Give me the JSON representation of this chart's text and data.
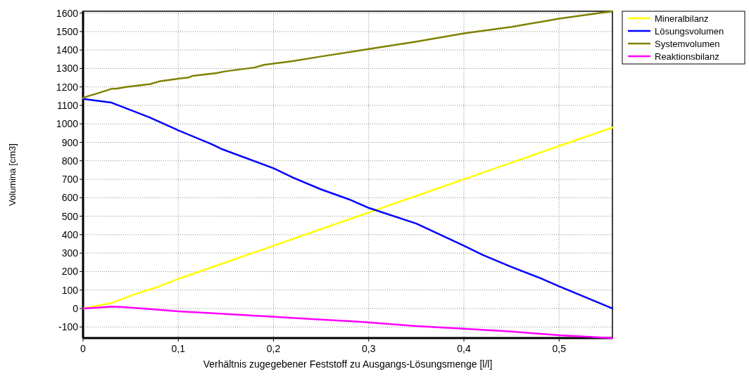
{
  "chart_data": {
    "type": "line",
    "xlabel": "Verhältnis zugegebener Feststoff zu Ausgangs-Lösungsmenge [l/l]",
    "ylabel": "Volumina [cm3]",
    "xlim": [
      0,
      0.556
    ],
    "xticks": [
      {
        "value": 0,
        "label": "0"
      },
      {
        "value": 0.1,
        "label": "0,1"
      },
      {
        "value": 0.2,
        "label": "0,2"
      },
      {
        "value": 0.3,
        "label": "0,3"
      },
      {
        "value": 0.4,
        "label": "0,4"
      },
      {
        "value": 0.5,
        "label": "0,5"
      }
    ],
    "ylim": [
      -160,
      1610
    ],
    "yticks": [
      -100,
      0,
      100,
      200,
      300,
      400,
      500,
      600,
      700,
      800,
      900,
      1000,
      1100,
      1200,
      1300,
      1400,
      1500,
      1600
    ],
    "grid": true,
    "legend": "top right",
    "line_style": "solid",
    "marker": "none",
    "series": [
      {
        "name": "Mineralbilanz",
        "color": "#ffff00",
        "x": [
          0,
          0.03,
          0.05,
          0.08,
          0.1,
          0.15,
          0.2,
          0.25,
          0.3,
          0.35,
          0.4,
          0.45,
          0.5,
          0.556
        ],
        "values": [
          0,
          30,
          70,
          120,
          160,
          250,
          340,
          430,
          520,
          610,
          700,
          790,
          880,
          980
        ]
      },
      {
        "name": "Lösungsvolumen",
        "color": "#0000ff",
        "x": [
          0,
          0.03,
          0.05,
          0.07,
          0.1,
          0.135,
          0.145,
          0.2,
          0.22,
          0.25,
          0.28,
          0.3,
          0.35,
          0.4,
          0.42,
          0.45,
          0.48,
          0.5,
          0.556
        ],
        "values": [
          1135,
          1115,
          1075,
          1035,
          965,
          890,
          865,
          760,
          710,
          645,
          590,
          545,
          460,
          340,
          290,
          225,
          165,
          120,
          0
        ]
      },
      {
        "name": "Systemvolumen",
        "color": "#808000",
        "x": [
          0,
          0.005,
          0.015,
          0.03,
          0.035,
          0.045,
          0.07,
          0.08,
          0.1,
          0.11,
          0.115,
          0.14,
          0.15,
          0.18,
          0.19,
          0.22,
          0.25,
          0.3,
          0.35,
          0.4,
          0.45,
          0.5,
          0.556
        ],
        "values": [
          1140,
          1150,
          1165,
          1190,
          1190,
          1200,
          1215,
          1230,
          1245,
          1250,
          1260,
          1275,
          1285,
          1305,
          1320,
          1340,
          1365,
          1405,
          1445,
          1490,
          1525,
          1570,
          1610
        ]
      },
      {
        "name": "Reaktionsbilanz",
        "color": "#ff00ff",
        "x": [
          0,
          0.015,
          0.03,
          0.04,
          0.07,
          0.1,
          0.15,
          0.2,
          0.25,
          0.3,
          0.35,
          0.4,
          0.45,
          0.5,
          0.556
        ],
        "values": [
          0,
          5,
          10,
          8,
          -3,
          -15,
          -30,
          -45,
          -60,
          -75,
          -95,
          -110,
          -125,
          -145,
          -160
        ]
      }
    ]
  }
}
